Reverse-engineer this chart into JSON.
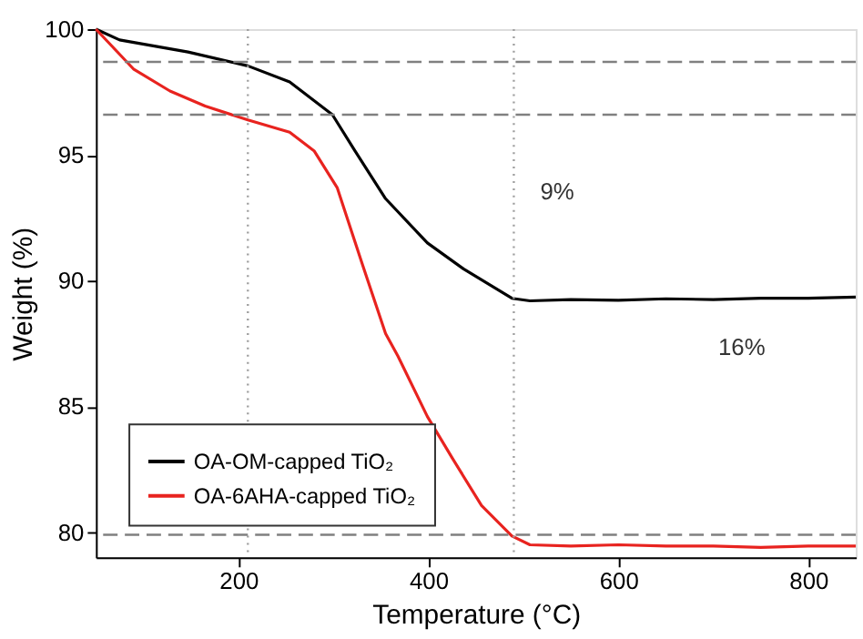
{
  "chart_data": {
    "type": "line",
    "xlabel": "Temperature (°C)",
    "ylabel": "Weight (%)",
    "xlim": [
      50,
      850
    ],
    "ylim": [
      79,
      100
    ],
    "xticks": [
      200,
      400,
      600,
      800
    ],
    "yticks": [
      80,
      85,
      90,
      95,
      100
    ],
    "grid": false,
    "legend": "bottom left",
    "line_style": "solid",
    "marker": "none",
    "series": [
      {
        "name": "OA-OM-capped TiO₂",
        "color": "#000000",
        "x": [
          50,
          75,
          147,
          210,
          254,
          299,
          323,
          355,
          399,
          437,
          488,
          507,
          550,
          600,
          650,
          700,
          750,
          800,
          850
        ],
        "values": [
          100,
          99.57,
          99.09,
          98.54,
          97.9,
          96.6,
          95.15,
          93.26,
          91.5,
          90.47,
          89.3,
          89.2,
          89.25,
          89.22,
          89.28,
          89.25,
          89.3,
          89.3,
          89.35
        ]
      },
      {
        "name": "OA-6AHA-capped TiO₂",
        "color": "#e8231f",
        "x": [
          50,
          90,
          128,
          165,
          210,
          254,
          280,
          304,
          331,
          355,
          368,
          399,
          425,
          456,
          488,
          507,
          550,
          600,
          650,
          700,
          750,
          800,
          850
        ],
        "values": [
          100,
          98.4,
          97.54,
          96.94,
          96.39,
          95.9,
          95.15,
          93.7,
          90.6,
          87.9,
          87.0,
          84.6,
          82.96,
          81.06,
          79.85,
          79.5,
          79.45,
          79.5,
          79.45,
          79.45,
          79.4,
          79.45,
          79.45
        ]
      }
    ],
    "ref_lines": [
      {
        "axis": "x",
        "value": 210,
        "color": "#a0a0a0",
        "line_style": "dotted"
      },
      {
        "axis": "x",
        "value": 490,
        "color": "#a0a0a0",
        "line_style": "dotted"
      },
      {
        "axis": "y",
        "value": 98.7,
        "color": "#808080",
        "line_style": "dashed"
      },
      {
        "axis": "y",
        "value": 96.6,
        "color": "#808080",
        "line_style": "dashed"
      },
      {
        "axis": "y",
        "value": 79.9,
        "color": "#808080",
        "line_style": "dashed"
      }
    ],
    "annotations": [
      "9%",
      "16%"
    ]
  }
}
